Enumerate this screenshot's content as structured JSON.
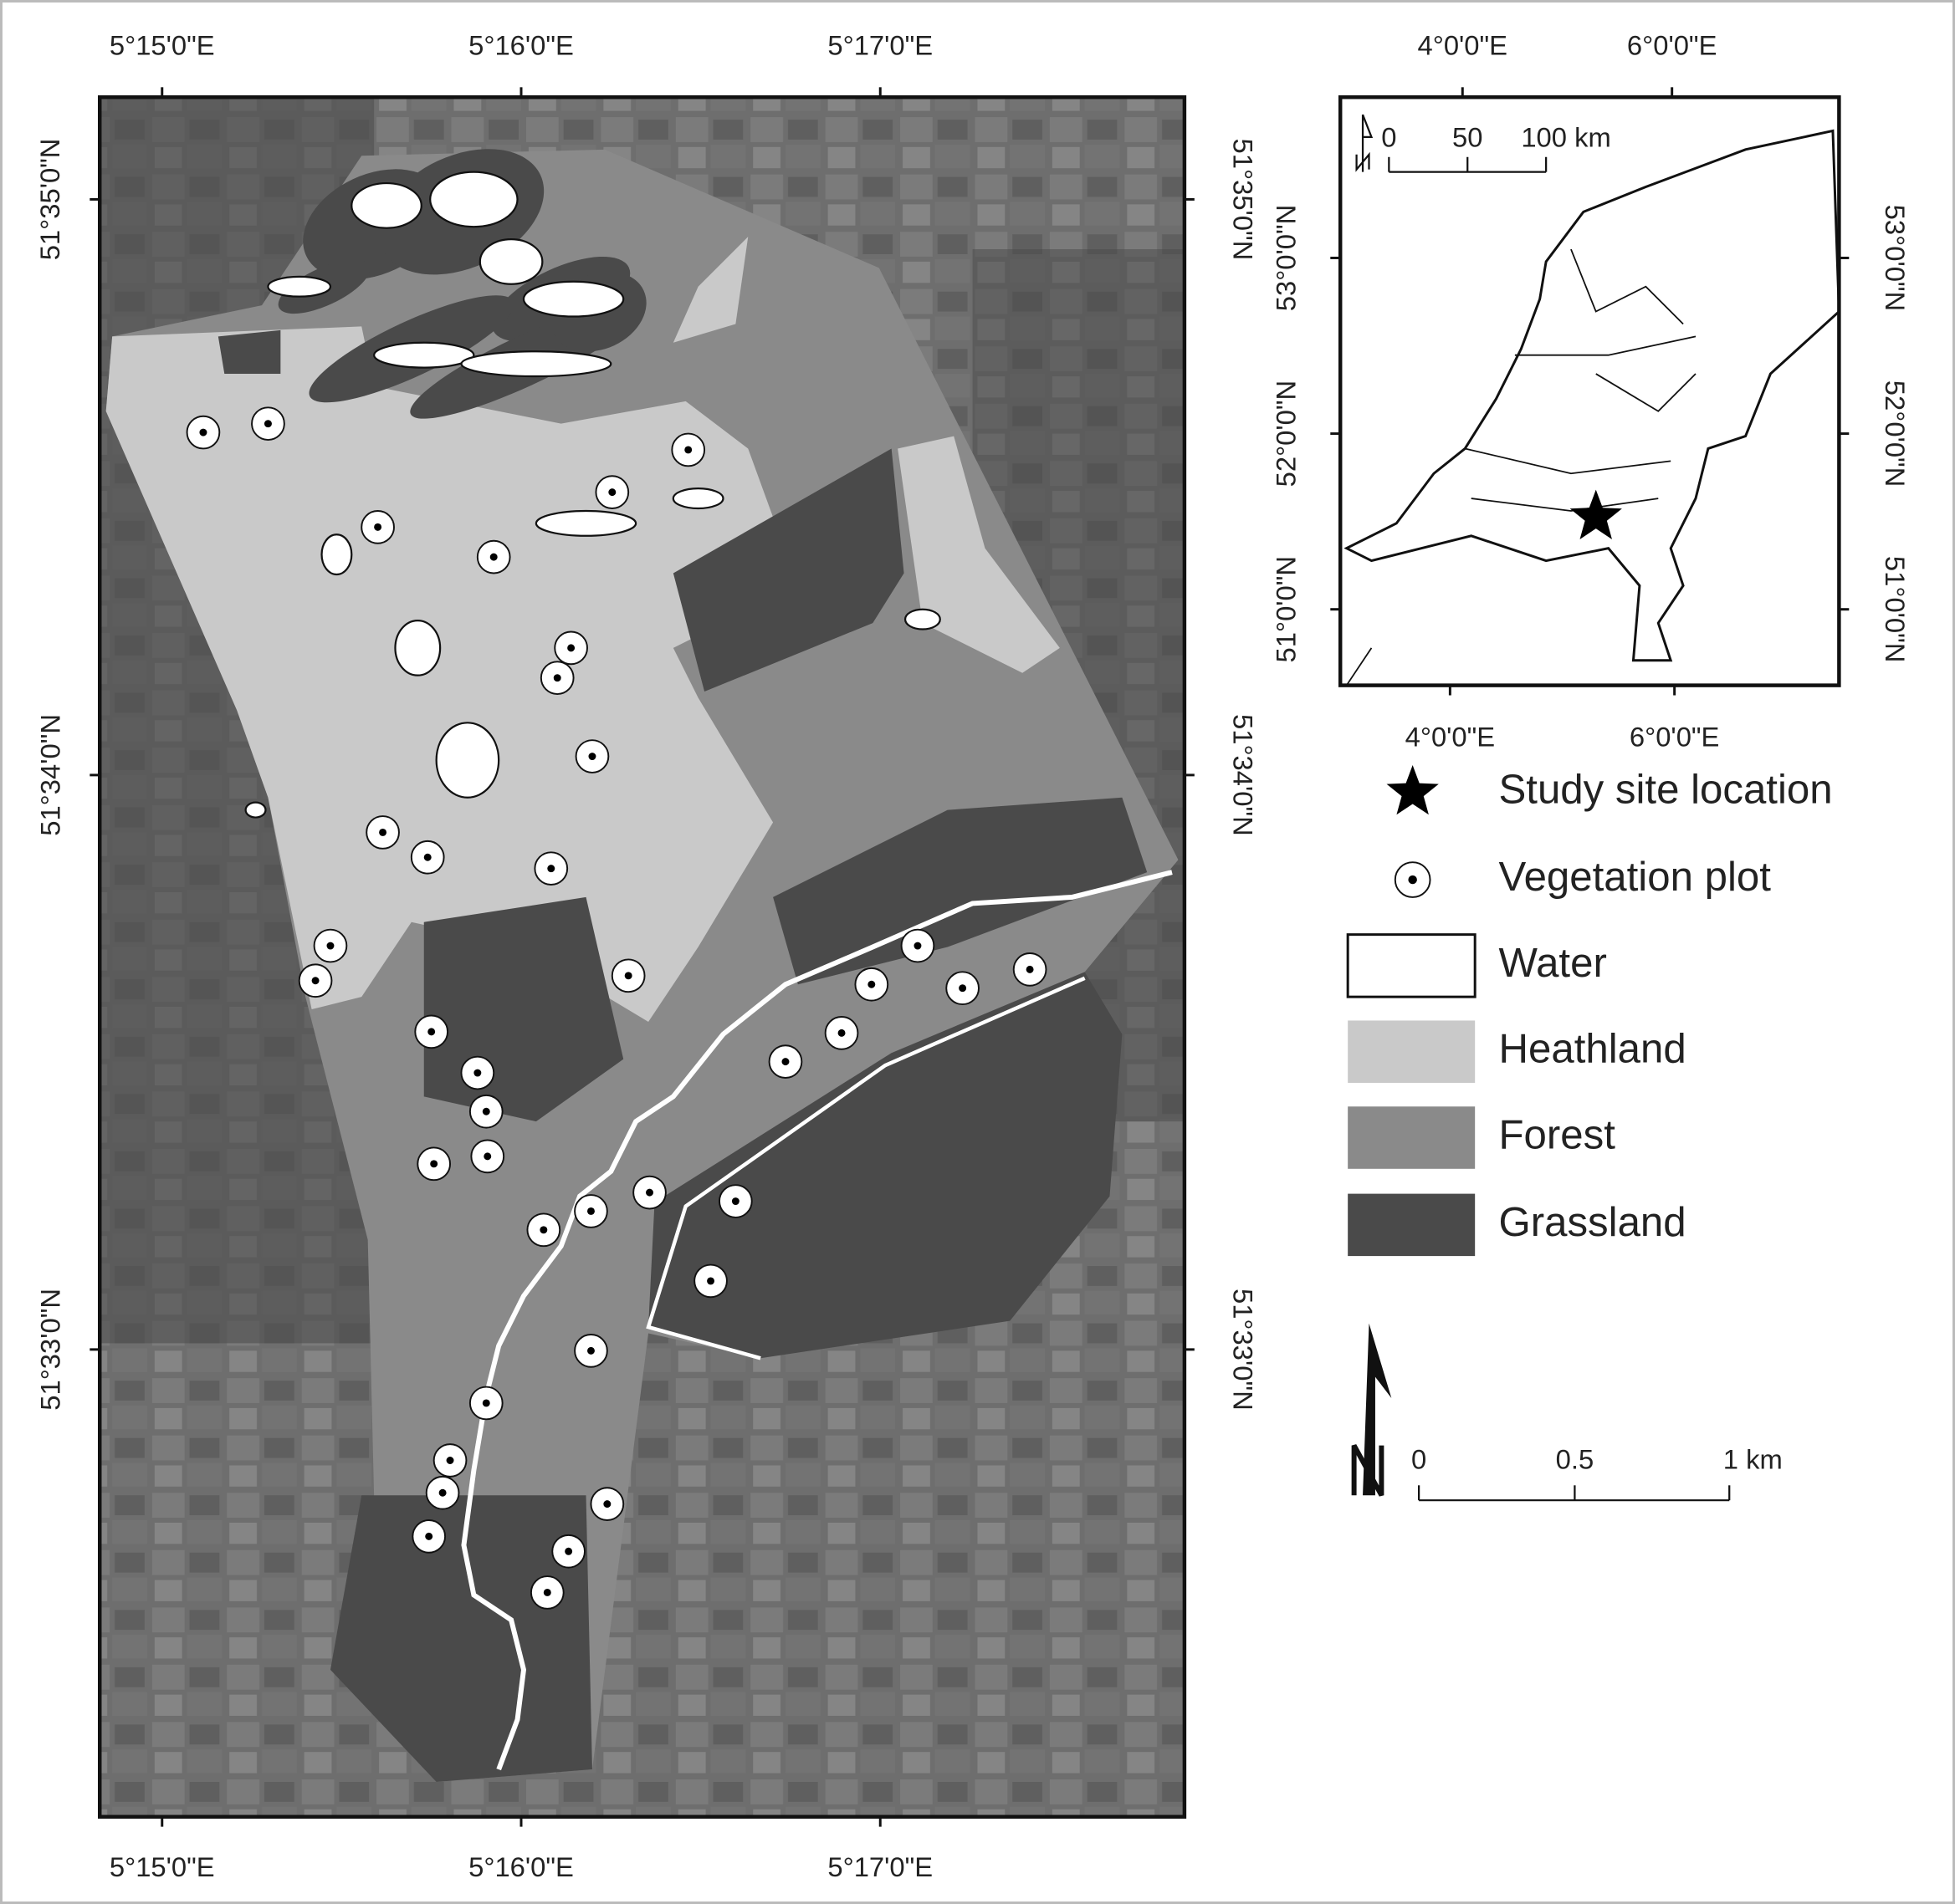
{
  "main_map": {
    "top_labels": [
      "5°15'0\"E",
      "5°16'0\"E",
      "5°17'0\"E"
    ],
    "bottom_labels": [
      "5°15'0\"E",
      "5°16'0\"E",
      "5°17'0\"E"
    ],
    "left_labels": [
      "51°35'0\"N",
      "51°34'0\"N",
      "51°33'0\"N"
    ],
    "right_labels": [
      "51°35'0\"N",
      "51°34'0\"N",
      "51°33'0\"N"
    ]
  },
  "inset_map": {
    "top_labels": [
      "4°0'0\"E",
      "6°0'0\"E"
    ],
    "bottom_labels": [
      "4°0'0\"E",
      "6°0'0\"E"
    ],
    "left_labels": [
      "53°0'0\"N",
      "52°0'0\"N",
      "51°0'0\"N"
    ],
    "right_labels": [
      "53°0'0\"N",
      "52°0'0\"N",
      "51°0'0\"N"
    ],
    "scale_bar_labels": [
      "0",
      "50",
      "100 km"
    ]
  },
  "legend": {
    "items": [
      "Study site location",
      "Vegetation plot",
      "Water",
      "Heathland",
      "Forest",
      "Grassland"
    ]
  },
  "scale_bar": {
    "labels": [
      "0",
      "0.5",
      "1 km"
    ]
  }
}
